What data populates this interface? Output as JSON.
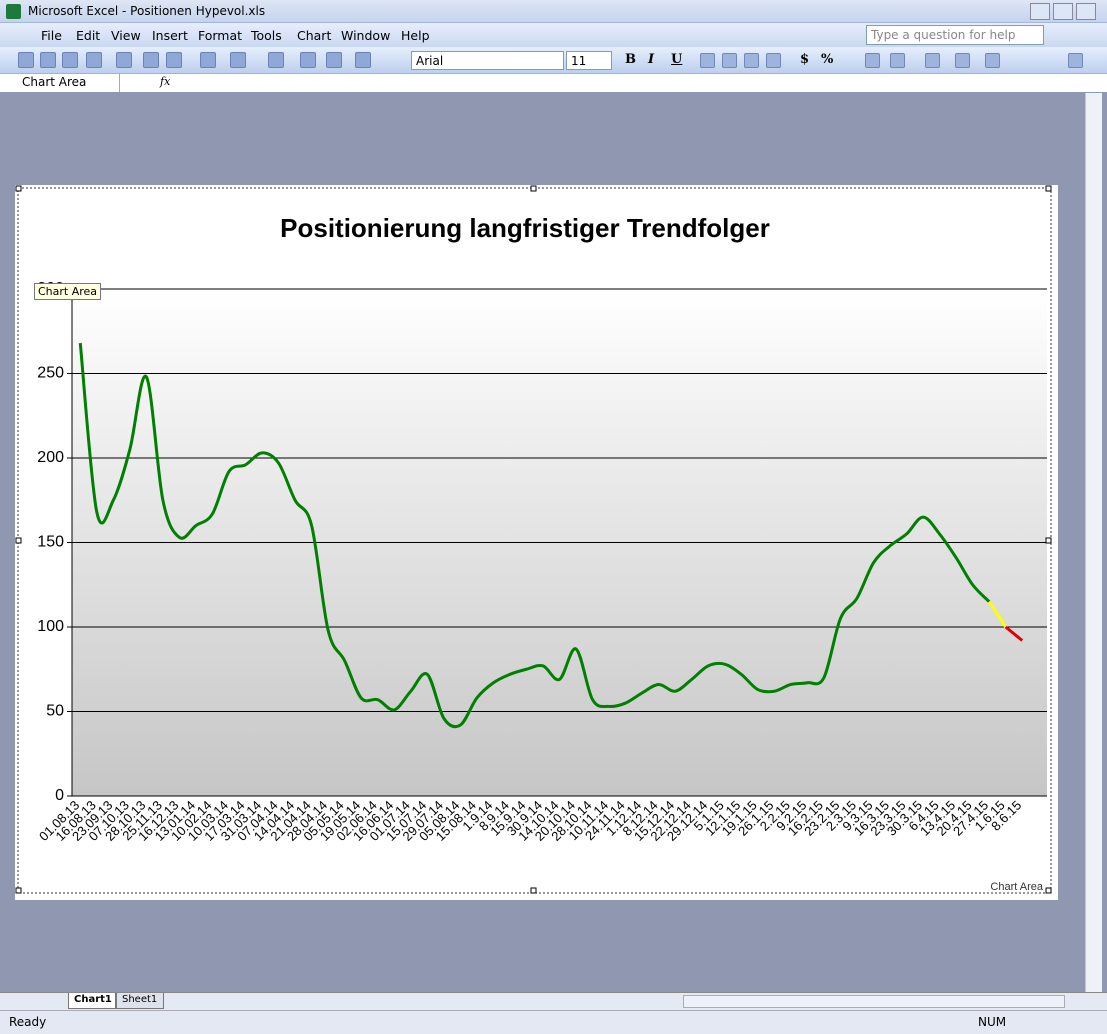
{
  "window": {
    "title": "Microsoft Excel - Positionen Hypevol.xls",
    "menu": [
      "File",
      "Edit",
      "View",
      "Insert",
      "Format",
      "Tools",
      "Chart",
      "Window",
      "Help"
    ],
    "help_box": "Type a question for help",
    "font_name": "Arial",
    "font_size": "11",
    "format_buttons": [
      "B",
      "I",
      "U",
      "$",
      "%"
    ],
    "name_box": "Chart Area",
    "formula_icon": "fx",
    "sheet_tabs": [
      "Chart1",
      "Sheet1"
    ],
    "status": "Ready",
    "num_indicator": "NUM",
    "tooltip": "Chart Area",
    "chart_area_label": "Chart Area"
  },
  "chart_data": {
    "type": "line",
    "title": "Positionierung langfristiger Trendfolger",
    "categories": [
      "01.08.13",
      "16.08.13",
      "23.09.13",
      "07.10.13",
      "28.10.13",
      "25.11.13",
      "16.12.13",
      "13.01.14",
      "10.02.14",
      "10.03.14",
      "17.03.14",
      "31.03.14",
      "07.04.14",
      "14.04.14",
      "21.04.14",
      "28.04.14",
      "05.05.14",
      "19.05.14",
      "02.06.14",
      "16.06.14",
      "01.07.14",
      "15.07.14",
      "29.07.14",
      "05.08.14",
      "15.08.14",
      "1.9.14",
      "8.9.14",
      "15.9.14",
      "30.9.14",
      "14.10.14",
      "20.10.14",
      "28.10.14",
      "10.11.14",
      "24.11.14",
      "1.12.14",
      "8.12.14",
      "15.12.14",
      "22.12.14",
      "29.12.14",
      "5.1.15",
      "12.1.15",
      "19.1.15",
      "26.1.15",
      "2.2.15",
      "9.2.15",
      "16.2.15",
      "23.2.15",
      "2.3.15",
      "9.3.15",
      "16.3.15",
      "23.3.15",
      "30.3.15",
      "6.4.15",
      "13.4.15",
      "20.4.15",
      "27.4.15",
      "1.6.15",
      "8.6.15",
      null
    ],
    "series": [
      {
        "color": "#008000",
        "values": [
          268,
          168,
          175,
          205,
          248,
          175,
          153,
          160,
          167,
          192,
          196,
          203,
          197,
          175,
          160,
          98,
          80,
          58,
          57,
          51,
          62,
          72,
          46,
          42,
          58,
          67,
          72,
          75,
          77,
          69,
          87,
          57,
          53,
          55,
          61,
          66,
          62,
          69,
          77,
          78,
          72,
          63,
          62,
          66,
          67,
          70,
          105,
          117,
          138,
          148,
          155,
          165,
          155,
          141,
          125,
          115,
          null,
          null,
          null
        ]
      },
      {
        "color": "#ffff00",
        "values": [
          null,
          null,
          null,
          null,
          null,
          null,
          null,
          null,
          null,
          null,
          null,
          null,
          null,
          null,
          null,
          null,
          null,
          null,
          null,
          null,
          null,
          null,
          null,
          null,
          null,
          null,
          null,
          null,
          null,
          null,
          null,
          null,
          null,
          null,
          null,
          null,
          null,
          null,
          null,
          null,
          null,
          null,
          null,
          null,
          null,
          null,
          null,
          null,
          null,
          null,
          null,
          null,
          null,
          null,
          null,
          115,
          100,
          null,
          null
        ]
      },
      {
        "color": "#e00000",
        "values": [
          null,
          null,
          null,
          null,
          null,
          null,
          null,
          null,
          null,
          null,
          null,
          null,
          null,
          null,
          null,
          null,
          null,
          null,
          null,
          null,
          null,
          null,
          null,
          null,
          null,
          null,
          null,
          null,
          null,
          null,
          null,
          null,
          null,
          null,
          null,
          null,
          null,
          null,
          null,
          null,
          null,
          null,
          null,
          null,
          null,
          null,
          null,
          null,
          null,
          null,
          null,
          null,
          null,
          null,
          null,
          null,
          100,
          92,
          null
        ]
      }
    ],
    "ylim": [
      0,
      300
    ],
    "yticks": [
      0,
      50,
      100,
      150,
      200,
      250,
      300
    ],
    "grid": true,
    "smooth": true
  }
}
